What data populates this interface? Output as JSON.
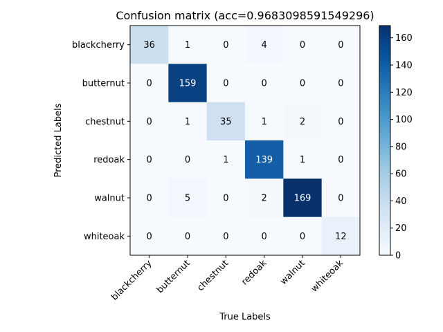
{
  "chart_data": {
    "type": "heatmap",
    "title": "Confusion matrix (acc=0.9683098591549296)",
    "xlabel": "True Labels",
    "ylabel": "Predicted Labels",
    "x_categories": [
      "blackcherry",
      "butternut",
      "chestnut",
      "redoak",
      "walnut",
      "whiteoak"
    ],
    "y_categories": [
      "blackcherry",
      "butternut",
      "chestnut",
      "redoak",
      "walnut ",
      "whiteoak"
    ],
    "values": [
      [
        36,
        1,
        0,
        4,
        0,
        0
      ],
      [
        0,
        159,
        0,
        0,
        0,
        0
      ],
      [
        0,
        1,
        35,
        1,
        2,
        0
      ],
      [
        0,
        0,
        1,
        139,
        1,
        0
      ],
      [
        0,
        5,
        0,
        2,
        169,
        0
      ],
      [
        0,
        0,
        0,
        0,
        0,
        12
      ]
    ],
    "colormap": "Blues",
    "colorbar": {
      "range": [
        0,
        169
      ],
      "ticks": [
        0,
        20,
        40,
        60,
        80,
        100,
        120,
        140,
        160
      ]
    },
    "grid": false
  }
}
